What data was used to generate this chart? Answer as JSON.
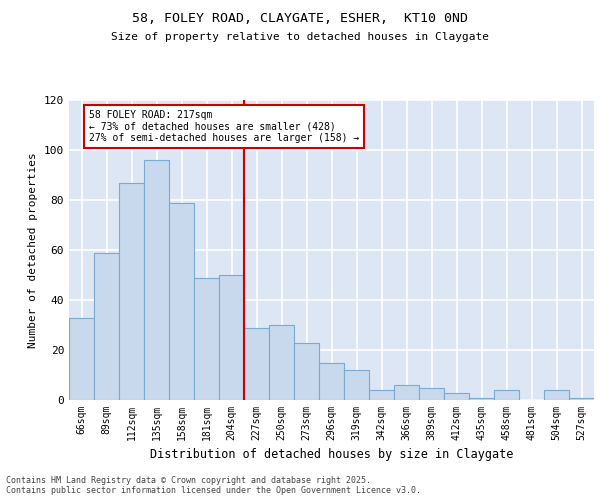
{
  "title": "58, FOLEY ROAD, CLAYGATE, ESHER,  KT10 0ND",
  "subtitle": "Size of property relative to detached houses in Claygate",
  "xlabel": "Distribution of detached houses by size in Claygate",
  "ylabel": "Number of detached properties",
  "categories": [
    "66sqm",
    "89sqm",
    "112sqm",
    "135sqm",
    "158sqm",
    "181sqm",
    "204sqm",
    "227sqm",
    "250sqm",
    "273sqm",
    "296sqm",
    "319sqm",
    "342sqm",
    "366sqm",
    "389sqm",
    "412sqm",
    "435sqm",
    "458sqm",
    "481sqm",
    "504sqm",
    "527sqm"
  ],
  "values": [
    33,
    59,
    87,
    96,
    79,
    49,
    50,
    29,
    30,
    23,
    15,
    12,
    4,
    6,
    5,
    3,
    1,
    4,
    0,
    4,
    1
  ],
  "bar_color": "#c8d9ee",
  "bar_edge_color": "#7aaad0",
  "background_color": "#dce6f5",
  "grid_color": "#ffffff",
  "annotation_text": "58 FOLEY ROAD: 217sqm\n← 73% of detached houses are smaller (428)\n27% of semi-detached houses are larger (158) →",
  "annotation_box_color": "#ffffff",
  "annotation_box_edge": "#cc0000",
  "vline_x": 6.5,
  "vline_color": "#cc0000",
  "ylim": [
    0,
    120
  ],
  "yticks": [
    0,
    20,
    40,
    60,
    80,
    100,
    120
  ],
  "footer_line1": "Contains HM Land Registry data © Crown copyright and database right 2025.",
  "footer_line2": "Contains public sector information licensed under the Open Government Licence v3.0."
}
